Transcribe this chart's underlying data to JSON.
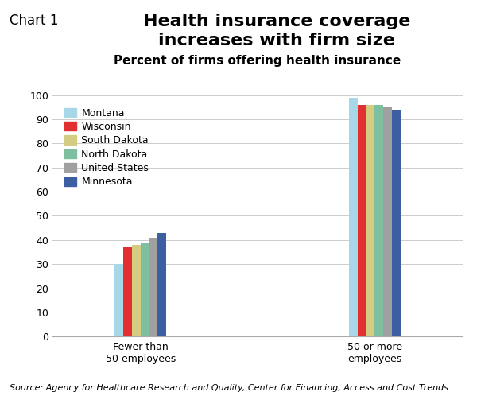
{
  "title": "Health insurance coverage\nincreases with firm size",
  "subtitle": "Percent of firms offering health insurance",
  "chart_label": "Chart 1",
  "source": "Source: Agency for Healthcare Research and Quality, Center for Financing, Access and Cost Trends",
  "categories": [
    "Fewer than\n50 employees",
    "50 or more\nemployees"
  ],
  "series": [
    {
      "name": "Montana",
      "color": "#a8d8e8",
      "values": [
        30,
        99
      ]
    },
    {
      "name": "Wisconsin",
      "color": "#e03030",
      "values": [
        37,
        96
      ]
    },
    {
      "name": "South Dakota",
      "color": "#d4cc80",
      "values": [
        38,
        96
      ]
    },
    {
      "name": "North Dakota",
      "color": "#7dbf9e",
      "values": [
        39,
        96
      ]
    },
    {
      "name": "United States",
      "color": "#a0a0a0",
      "values": [
        41,
        95
      ]
    },
    {
      "name": "Minnesota",
      "color": "#3b5fa0",
      "values": [
        43,
        94
      ]
    }
  ],
  "ylim": [
    0,
    100
  ],
  "yticks": [
    0,
    10,
    20,
    30,
    40,
    50,
    60,
    70,
    80,
    90,
    100
  ],
  "bar_width": 0.055,
  "group_centers": [
    1.0,
    2.5
  ],
  "background_color": "#ffffff",
  "title_fontsize": 16,
  "subtitle_fontsize": 11,
  "chart_label_fontsize": 12,
  "axis_fontsize": 9,
  "legend_fontsize": 9,
  "source_fontsize": 8
}
